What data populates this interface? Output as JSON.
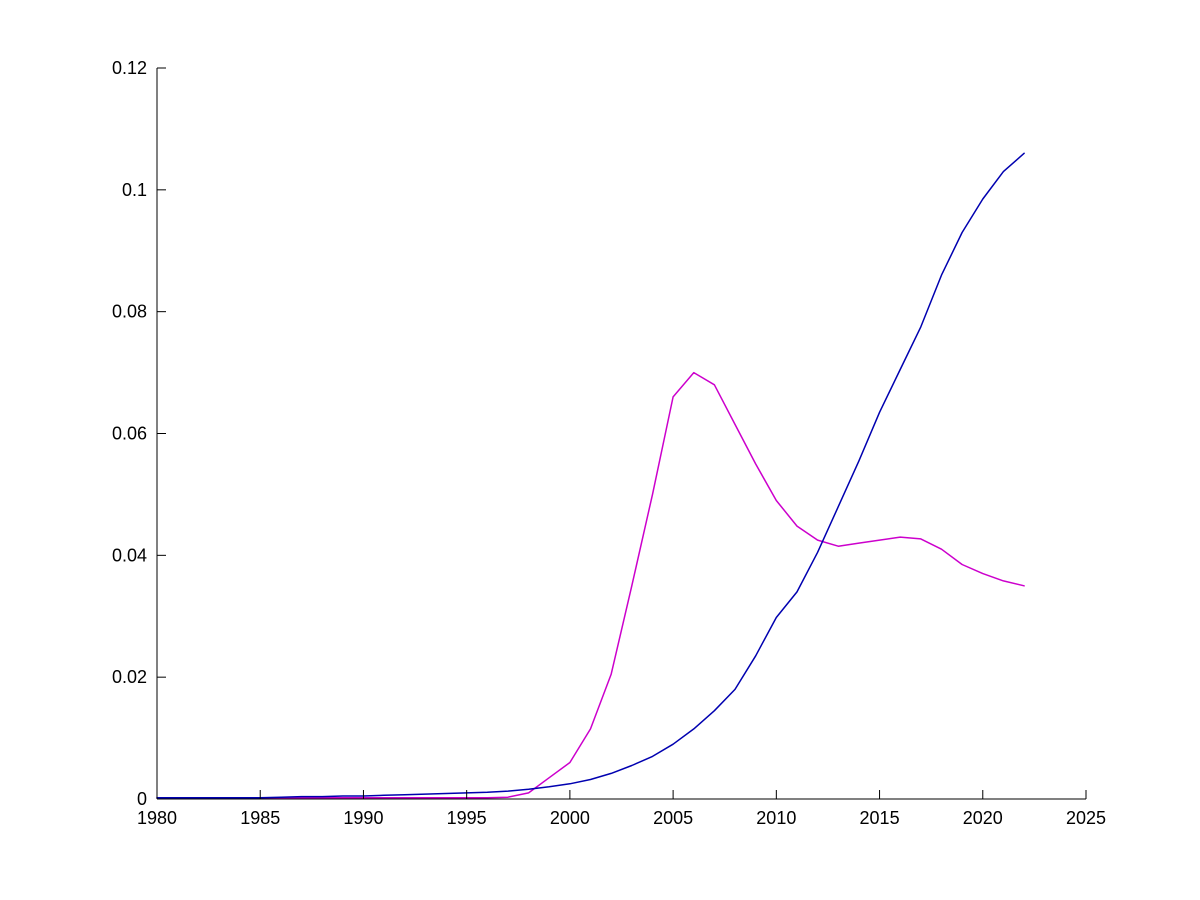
{
  "figure": {
    "background_color": "#ffffff",
    "axis_color": "#000000",
    "title": "",
    "xlabel": "",
    "ylabel": ""
  },
  "chart_data": {
    "type": "line",
    "title": "",
    "xlabel": "",
    "ylabel": "",
    "grid": false,
    "box": false,
    "legend": null,
    "xlim": [
      1980,
      2025
    ],
    "ylim": [
      0,
      0.12
    ],
    "xtick_values": [
      1980,
      1985,
      1990,
      1995,
      2000,
      2005,
      2010,
      2015,
      2020,
      2025
    ],
    "xtick_labels": [
      "1980",
      "1985",
      "1990",
      "1995",
      "2000",
      "2005",
      "2010",
      "2015",
      "2020",
      "2025"
    ],
    "ytick_values": [
      0,
      0.02,
      0.04,
      0.06,
      0.08,
      0.1,
      0.12
    ],
    "ytick_labels": [
      "0",
      "0.02",
      "0.04",
      "0.06",
      "0.08",
      "0.1",
      "0.12"
    ],
    "x": [
      1980,
      1981,
      1982,
      1983,
      1984,
      1985,
      1986,
      1987,
      1988,
      1989,
      1990,
      1991,
      1992,
      1993,
      1994,
      1995,
      1996,
      1997,
      1998,
      1999,
      2000,
      2001,
      2002,
      2003,
      2004,
      2005,
      2006,
      2007,
      2008,
      2009,
      2010,
      2011,
      2012,
      2013,
      2014,
      2015,
      2016,
      2017,
      2018,
      2019,
      2020,
      2021,
      2022
    ],
    "series": [
      {
        "name": "magenta-line",
        "color": "#CC00CC",
        "values": [
          0.0002,
          0.0002,
          0.0002,
          0.0002,
          0.0002,
          0.0002,
          0.0002,
          0.0002,
          0.0002,
          0.0002,
          0.0002,
          0.0002,
          0.0002,
          0.0002,
          0.0002,
          0.0002,
          0.0002,
          0.0003,
          0.001,
          0.0035,
          0.006,
          0.0115,
          0.0205,
          0.035,
          0.05,
          0.066,
          0.07,
          0.068,
          0.0615,
          0.055,
          0.049,
          0.0448,
          0.0425,
          0.0415,
          0.042,
          0.0425,
          0.043,
          0.0427,
          0.041,
          0.0385,
          0.037,
          0.0358,
          0.035
        ]
      },
      {
        "name": "blue-line",
        "color": "#0000B0",
        "values": [
          0.0002,
          0.0002,
          0.0002,
          0.0002,
          0.0002,
          0.0002,
          0.0003,
          0.0004,
          0.0004,
          0.0005,
          0.0005,
          0.0006,
          0.0007,
          0.0008,
          0.0009,
          0.001,
          0.0011,
          0.0013,
          0.0016,
          0.002,
          0.0025,
          0.0032,
          0.0042,
          0.0055,
          0.007,
          0.009,
          0.0115,
          0.0145,
          0.018,
          0.0235,
          0.0298,
          0.034,
          0.0405,
          0.048,
          0.0555,
          0.0635,
          0.0705,
          0.0775,
          0.086,
          0.093,
          0.0985,
          0.103,
          0.106
        ]
      }
    ]
  }
}
